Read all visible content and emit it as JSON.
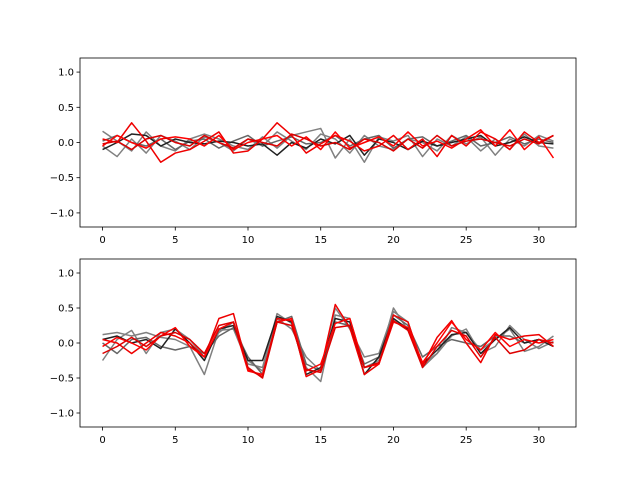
{
  "chart_data": [
    {
      "type": "line",
      "title": "",
      "xlabel": "",
      "ylabel": "",
      "xlim": [
        -1.55,
        32.55
      ],
      "ylim": [
        -1.2,
        1.2
      ],
      "x_ticks": [
        0,
        5,
        10,
        15,
        20,
        25,
        30
      ],
      "y_ticks": [
        -1.0,
        -0.5,
        0.0,
        0.5,
        1.0
      ],
      "x_tick_labels": [
        "0",
        "5",
        "10",
        "15",
        "20",
        "25",
        "30"
      ],
      "y_tick_labels": [
        "−1.0",
        "−0.5",
        "0.0",
        "0.5",
        "1.0"
      ],
      "grid": false,
      "x": [
        0,
        1,
        2,
        3,
        4,
        5,
        6,
        7,
        8,
        9,
        10,
        11,
        12,
        13,
        14,
        15,
        16,
        17,
        18,
        19,
        20,
        21,
        22,
        23,
        24,
        25,
        26,
        27,
        28,
        29,
        30,
        31
      ],
      "series": [
        {
          "color": "#808080",
          "values": [
            0.16,
            0.02,
            -0.12,
            0.15,
            -0.05,
            -0.12,
            0.05,
            0.12,
            0.05,
            -0.05,
            -0.1,
            0.08,
            -0.08,
            0.1,
            0.15,
            0.2,
            -0.22,
            0.05,
            -0.28,
            0.08,
            0.02,
            0.1,
            -0.2,
            0.05,
            -0.05,
            0.08,
            -0.12,
            0.05,
            -0.1,
            0.12,
            -0.05,
            -0.08
          ]
        },
        {
          "color": "#808080",
          "values": [
            -0.05,
            -0.2,
            0.05,
            -0.15,
            0.1,
            0.02,
            -0.1,
            0.08,
            0.0,
            -0.12,
            0.05,
            -0.05,
            0.15,
            0.02,
            -0.1,
            0.12,
            0.05,
            -0.15,
            0.1,
            -0.05,
            -0.1,
            0.05,
            0.0,
            -0.12,
            0.1,
            -0.02,
            0.08,
            -0.18,
            0.05,
            -0.05,
            0.1,
            0.02
          ]
        },
        {
          "color": "#666666",
          "values": [
            0.02,
            0.1,
            0.0,
            -0.05,
            0.05,
            -0.1,
            0.02,
            0.05,
            -0.08,
            0.02,
            0.1,
            -0.05,
            0.02,
            0.08,
            -0.02,
            0.0,
            0.1,
            -0.05,
            0.05,
            0.1,
            -0.08,
            0.05,
            0.08,
            -0.05,
            0.02,
            0.1,
            -0.05,
            0.0,
            0.08,
            -0.02,
            0.05,
            0.0
          ]
        },
        {
          "color": "#222222",
          "values": [
            -0.1,
            0.0,
            0.12,
            0.1,
            -0.05,
            0.05,
            0.0,
            -0.02,
            0.02,
            0.0,
            -0.05,
            -0.02,
            -0.18,
            0.0,
            -0.08,
            0.05,
            -0.02,
            0.1,
            -0.18,
            0.05,
            0.0,
            -0.1,
            0.02,
            -0.05,
            0.0,
            0.05,
            0.1,
            -0.05,
            0.0,
            0.08,
            0.0,
            -0.02
          ]
        },
        {
          "color": "#ee0000",
          "values": [
            0.05,
            0.0,
            0.28,
            0.02,
            -0.28,
            -0.15,
            -0.1,
            0.02,
            0.15,
            -0.15,
            -0.12,
            0.05,
            0.28,
            0.1,
            -0.15,
            -0.02,
            0.1,
            0.02,
            -0.12,
            -0.05,
            0.1,
            -0.1,
            0.05,
            -0.2,
            0.1,
            -0.05,
            0.15,
            0.05,
            -0.1,
            0.15,
            0.0,
            0.1
          ]
        },
        {
          "color": "#ff0000",
          "values": [
            -0.05,
            0.1,
            0.0,
            -0.08,
            0.05,
            0.08,
            0.05,
            -0.05,
            0.1,
            -0.1,
            0.0,
            0.05,
            0.1,
            -0.05,
            0.08,
            -0.1,
            0.15,
            -0.08,
            0.0,
            0.08,
            -0.05,
            0.15,
            -0.05,
            0.02,
            -0.08,
            0.05,
            0.18,
            -0.05,
            0.18,
            -0.1,
            0.08,
            -0.22
          ]
        },
        {
          "color": "#dd0000",
          "values": [
            -0.02,
            0.02,
            -0.1,
            0.05,
            0.1,
            0.0,
            -0.05,
            0.1,
            0.0,
            -0.08,
            0.05,
            0.0,
            -0.05,
            0.12,
            0.05,
            -0.05,
            0.0,
            -0.1,
            0.05,
            0.0,
            -0.12,
            0.05,
            -0.08,
            0.1,
            -0.05,
            0.02,
            0.05,
            0.0,
            -0.05,
            0.05,
            -0.02,
            0.1
          ]
        }
      ]
    },
    {
      "type": "line",
      "title": "",
      "xlabel": "",
      "ylabel": "",
      "xlim": [
        -1.55,
        32.55
      ],
      "ylim": [
        -1.2,
        1.2
      ],
      "x_ticks": [
        0,
        5,
        10,
        15,
        20,
        25,
        30
      ],
      "y_ticks": [
        -1.0,
        -0.5,
        0.0,
        0.5,
        1.0
      ],
      "x_tick_labels": [
        "0",
        "5",
        "10",
        "15",
        "20",
        "25",
        "30"
      ],
      "y_tick_labels": [
        "−1.0",
        "−0.5",
        "0.0",
        "0.5",
        "1.0"
      ],
      "grid": false,
      "x": [
        0,
        1,
        2,
        3,
        4,
        5,
        6,
        7,
        8,
        9,
        10,
        11,
        12,
        13,
        14,
        15,
        16,
        17,
        18,
        19,
        20,
        21,
        22,
        23,
        24,
        25,
        26,
        27,
        28,
        29,
        30,
        31
      ],
      "series": [
        {
          "color": "#808080",
          "values": [
            0.12,
            0.15,
            0.1,
            0.15,
            0.08,
            0.05,
            -0.05,
            -0.45,
            0.18,
            0.2,
            -0.3,
            -0.35,
            0.42,
            0.28,
            -0.35,
            -0.55,
            0.4,
            0.35,
            -0.35,
            -0.25,
            0.5,
            0.18,
            -0.3,
            -0.15,
            0.22,
            0.15,
            -0.1,
            0.05,
            0.2,
            -0.12,
            -0.05,
            0.1
          ]
        },
        {
          "color": "#808080",
          "values": [
            -0.25,
            0.05,
            0.18,
            -0.15,
            0.15,
            0.2,
            0.05,
            -0.2,
            0.15,
            0.3,
            -0.25,
            -0.4,
            0.35,
            0.2,
            -0.2,
            -0.4,
            0.5,
            0.2,
            -0.2,
            -0.15,
            0.45,
            0.3,
            -0.35,
            -0.15,
            0.1,
            0.2,
            -0.15,
            -0.05,
            0.25,
            0.05,
            -0.08,
            0.02
          ]
        },
        {
          "color": "#666666",
          "values": [
            0.0,
            -0.15,
            0.05,
            0.08,
            -0.05,
            -0.1,
            -0.05,
            -0.15,
            0.1,
            0.22,
            -0.2,
            -0.45,
            0.3,
            0.38,
            -0.3,
            -0.4,
            0.3,
            0.25,
            -0.3,
            -0.2,
            0.4,
            0.25,
            -0.2,
            -0.05,
            0.05,
            0.0,
            -0.05,
            0.1,
            0.1,
            0.0,
            0.05,
            -0.05
          ]
        },
        {
          "color": "#222222",
          "values": [
            0.05,
            0.1,
            0.0,
            0.05,
            -0.08,
            0.2,
            0.0,
            -0.25,
            0.2,
            0.25,
            -0.25,
            -0.25,
            0.38,
            0.3,
            -0.45,
            -0.35,
            0.35,
            0.3,
            -0.45,
            -0.2,
            0.35,
            0.2,
            -0.3,
            -0.1,
            0.12,
            0.15,
            -0.15,
            0.05,
            0.22,
            0.0,
            0.05,
            -0.05
          ]
        },
        {
          "color": "#ee0000",
          "values": [
            0.05,
            0.0,
            -0.15,
            0.0,
            0.15,
            0.1,
            0.0,
            -0.2,
            0.35,
            0.42,
            -0.38,
            -0.48,
            0.35,
            0.32,
            -0.48,
            -0.38,
            0.55,
            0.22,
            -0.45,
            -0.3,
            0.4,
            0.3,
            -0.32,
            0.08,
            0.32,
            0.0,
            -0.28,
            0.12,
            0.05,
            0.1,
            0.12,
            -0.05
          ]
        },
        {
          "color": "#ff0000",
          "values": [
            -0.05,
            0.08,
            0.0,
            -0.1,
            0.1,
            0.22,
            -0.05,
            -0.2,
            0.2,
            0.3,
            -0.4,
            -0.45,
            0.3,
            0.35,
            -0.4,
            -0.3,
            0.28,
            0.35,
            -0.35,
            -0.3,
            0.3,
            0.22,
            -0.28,
            0.0,
            0.3,
            0.05,
            -0.1,
            0.15,
            -0.05,
            0.05,
            0.0,
            0.05
          ]
        },
        {
          "color": "#dd0000",
          "values": [
            -0.15,
            -0.05,
            0.08,
            -0.05,
            0.1,
            0.15,
            0.05,
            -0.15,
            0.25,
            0.3,
            -0.35,
            -0.5,
            0.3,
            0.25,
            -0.38,
            -0.42,
            0.22,
            0.25,
            -0.35,
            -0.28,
            0.32,
            0.18,
            -0.35,
            -0.05,
            0.18,
            0.1,
            -0.2,
            0.08,
            -0.15,
            -0.1,
            0.05,
            0.0
          ]
        }
      ]
    }
  ]
}
